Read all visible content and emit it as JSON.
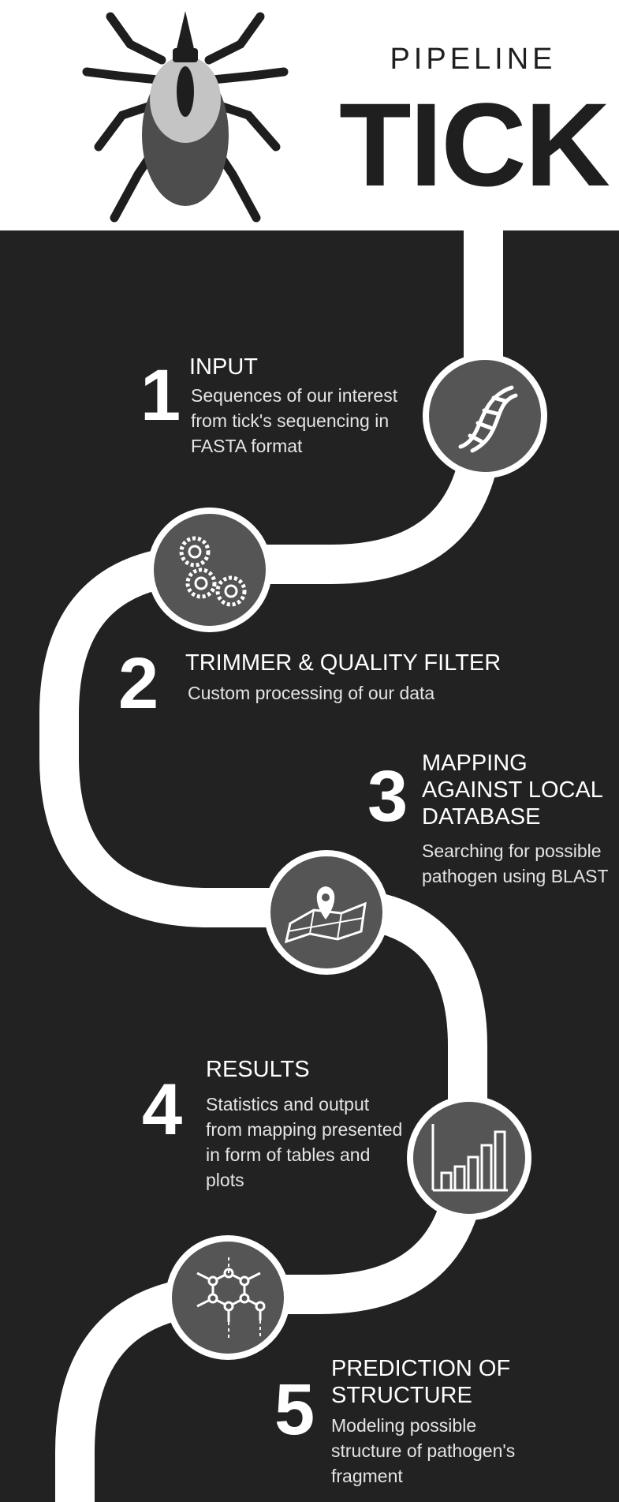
{
  "header": {
    "subtitle": "PIPELINE",
    "title": "TICK"
  },
  "steps": [
    {
      "number": "1",
      "title": "INPUT",
      "description": "Sequences of our interest from tick's sequencing in FASTA format",
      "icon": "dna-icon"
    },
    {
      "number": "2",
      "title": "TRIMMER & QUALITY FILTER",
      "description": "Custom processing of our data",
      "icon": "gears-icon"
    },
    {
      "number": "3",
      "title": "MAPPING AGAINST LOCAL DATABASE",
      "description": "Searching for possible pathogen using BLAST",
      "icon": "map-pin-icon"
    },
    {
      "number": "4",
      "title": "RESULTS",
      "description": "Statistics and output from mapping presented in form of tables and plots",
      "icon": "bar-chart-icon"
    },
    {
      "number": "5",
      "title": "PREDICTION OF STRUCTURE",
      "description": "Modeling possible structure of pathogen's fragment",
      "icon": "molecule-icon"
    }
  ],
  "colors": {
    "background": "#222222",
    "road": "#ffffff",
    "circle": "#555555",
    "header": "#ffffff"
  }
}
